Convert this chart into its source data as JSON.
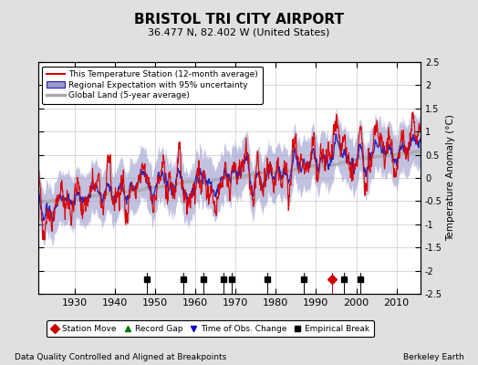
{
  "title": "BRISTOL TRI CITY AIRPORT",
  "subtitle": "36.477 N, 82.402 W (United States)",
  "ylabel": "Temperature Anomaly (°C)",
  "xlabel_note": "Data Quality Controlled and Aligned at Breakpoints",
  "credit": "Berkeley Earth",
  "ylim": [
    -2.5,
    2.5
  ],
  "xlim": [
    1921,
    2016
  ],
  "yticks": [
    -2.5,
    -2,
    -1.5,
    -1,
    -0.5,
    0,
    0.5,
    1,
    1.5,
    2,
    2.5
  ],
  "xticks": [
    1930,
    1940,
    1950,
    1960,
    1970,
    1980,
    1990,
    2000,
    2010
  ],
  "bg_color": "#e0e0e0",
  "plot_bg_color": "#ffffff",
  "grid_color": "#bbbbbb",
  "red_line_color": "#dd0000",
  "blue_line_color": "#2222bb",
  "blue_fill_color": "#9999cc",
  "gray_line_color": "#aaaaaa",
  "marker_events": {
    "station_move": {
      "years": [
        1994
      ],
      "color": "#cc0000",
      "marker": "D",
      "label": "Station Move"
    },
    "record_gap": {
      "years": [],
      "color": "#007700",
      "marker": "^",
      "label": "Record Gap"
    },
    "obs_change": {
      "years": [],
      "color": "#0000cc",
      "marker": "v",
      "label": "Time of Obs. Change"
    },
    "empirical_break": {
      "years": [
        1948,
        1957,
        1962,
        1967,
        1969,
        1978,
        1987,
        1997,
        2001
      ],
      "color": "#000000",
      "marker": "s",
      "label": "Empirical Break"
    }
  },
  "seed": 42
}
